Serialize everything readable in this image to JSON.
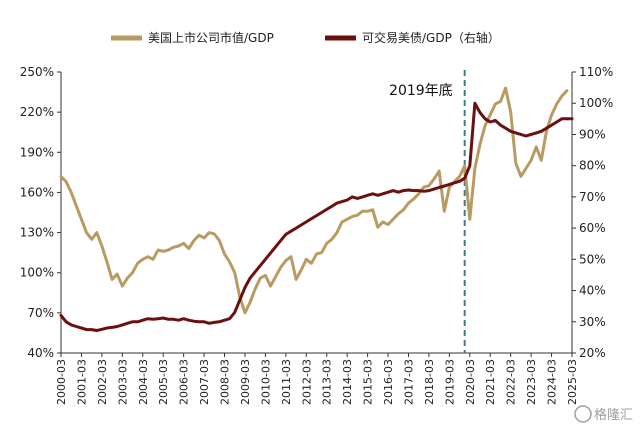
{
  "chart_data": {
    "type": "line",
    "legend_position": "top",
    "grid": false,
    "annotation": "2019年底",
    "annotation_x": "2019-12",
    "watermark": "格隆汇",
    "colors": {
      "series1": "#B89B62",
      "series2": "#6B0F0F",
      "annotation_line": "#3E7B8C"
    },
    "left_axis": {
      "ticks": [
        40,
        70,
        100,
        130,
        160,
        190,
        220,
        250
      ],
      "labels": [
        "40%",
        "70%",
        "100%",
        "130%",
        "160%",
        "190%",
        "220%",
        "250%"
      ],
      "ylim": [
        40,
        250
      ]
    },
    "right_axis": {
      "ticks": [
        20,
        30,
        40,
        50,
        60,
        70,
        80,
        90,
        100,
        110
      ],
      "labels": [
        "20%",
        "30%",
        "40%",
        "50%",
        "60%",
        "70%",
        "80%",
        "90%",
        "100%",
        "110%"
      ],
      "ylim": [
        20,
        110
      ]
    },
    "x_range": [
      "2000-03",
      "2025-03"
    ],
    "x_ticks": [
      "2000-03",
      "2001-03",
      "2002-03",
      "2003-03",
      "2004-03",
      "2005-03",
      "2006-03",
      "2007-03",
      "2008-03",
      "2009-03",
      "2010-03",
      "2011-03",
      "2012-03",
      "2013-03",
      "2014-03",
      "2015-03",
      "2016-03",
      "2017-03",
      "2018-03",
      "2019-03",
      "2020-03",
      "2021-03",
      "2022-03",
      "2023-03",
      "2024-03",
      "2025-03"
    ],
    "series": [
      {
        "name": "美国上市公司市值/GDP",
        "axis": "left",
        "points": [
          [
            "2000-03",
            172
          ],
          [
            "2000-06",
            168
          ],
          [
            "2000-09",
            160
          ],
          [
            "2000-12",
            150
          ],
          [
            "2001-03",
            140
          ],
          [
            "2001-06",
            130
          ],
          [
            "2001-09",
            125
          ],
          [
            "2001-12",
            130
          ],
          [
            "2002-03",
            120
          ],
          [
            "2002-06",
            108
          ],
          [
            "2002-09",
            95
          ],
          [
            "2002-12",
            99
          ],
          [
            "2003-03",
            90
          ],
          [
            "2003-06",
            96
          ],
          [
            "2003-09",
            100
          ],
          [
            "2003-12",
            107
          ],
          [
            "2004-03",
            110
          ],
          [
            "2004-06",
            112
          ],
          [
            "2004-09",
            110
          ],
          [
            "2004-12",
            117
          ],
          [
            "2005-03",
            116
          ],
          [
            "2005-06",
            117
          ],
          [
            "2005-09",
            119
          ],
          [
            "2005-12",
            120
          ],
          [
            "2006-03",
            122
          ],
          [
            "2006-06",
            118
          ],
          [
            "2006-09",
            124
          ],
          [
            "2006-12",
            128
          ],
          [
            "2007-03",
            126
          ],
          [
            "2007-06",
            130
          ],
          [
            "2007-09",
            129
          ],
          [
            "2007-12",
            124
          ],
          [
            "2008-03",
            114
          ],
          [
            "2008-06",
            108
          ],
          [
            "2008-09",
            100
          ],
          [
            "2008-12",
            82
          ],
          [
            "2009-03",
            70
          ],
          [
            "2009-06",
            78
          ],
          [
            "2009-09",
            88
          ],
          [
            "2009-12",
            96
          ],
          [
            "2010-03",
            98
          ],
          [
            "2010-06",
            90
          ],
          [
            "2010-09",
            97
          ],
          [
            "2010-12",
            104
          ],
          [
            "2011-03",
            109
          ],
          [
            "2011-06",
            112
          ],
          [
            "2011-09",
            95
          ],
          [
            "2011-12",
            102
          ],
          [
            "2012-03",
            110
          ],
          [
            "2012-06",
            107
          ],
          [
            "2012-09",
            114
          ],
          [
            "2012-12",
            115
          ],
          [
            "2013-03",
            122
          ],
          [
            "2013-06",
            125
          ],
          [
            "2013-09",
            130
          ],
          [
            "2013-12",
            138
          ],
          [
            "2014-03",
            140
          ],
          [
            "2014-06",
            142
          ],
          [
            "2014-09",
            143
          ],
          [
            "2014-12",
            146
          ],
          [
            "2015-03",
            146
          ],
          [
            "2015-06",
            147
          ],
          [
            "2015-09",
            134
          ],
          [
            "2015-12",
            138
          ],
          [
            "2016-03",
            136
          ],
          [
            "2016-06",
            140
          ],
          [
            "2016-09",
            144
          ],
          [
            "2016-12",
            147
          ],
          [
            "2017-03",
            152
          ],
          [
            "2017-06",
            155
          ],
          [
            "2017-09",
            159
          ],
          [
            "2017-12",
            164
          ],
          [
            "2018-03",
            165
          ],
          [
            "2018-06",
            170
          ],
          [
            "2018-09",
            176
          ],
          [
            "2018-12",
            146
          ],
          [
            "2019-03",
            164
          ],
          [
            "2019-06",
            168
          ],
          [
            "2019-09",
            172
          ],
          [
            "2019-12",
            180
          ],
          [
            "2020-03",
            140
          ],
          [
            "2020-06",
            178
          ],
          [
            "2020-09",
            196
          ],
          [
            "2020-12",
            210
          ],
          [
            "2021-03",
            218
          ],
          [
            "2021-06",
            226
          ],
          [
            "2021-09",
            228
          ],
          [
            "2021-12",
            238
          ],
          [
            "2022-03",
            220
          ],
          [
            "2022-06",
            182
          ],
          [
            "2022-09",
            172
          ],
          [
            "2022-12",
            178
          ],
          [
            "2023-03",
            184
          ],
          [
            "2023-06",
            194
          ],
          [
            "2023-09",
            184
          ],
          [
            "2023-12",
            206
          ],
          [
            "2024-03",
            218
          ],
          [
            "2024-06",
            226
          ],
          [
            "2024-09",
            232
          ],
          [
            "2024-12",
            236
          ]
        ]
      },
      {
        "name": "可交易美债/GDP（右轴）",
        "axis": "right",
        "points": [
          [
            "2000-03",
            32
          ],
          [
            "2000-06",
            30
          ],
          [
            "2000-09",
            29
          ],
          [
            "2000-12",
            28.5
          ],
          [
            "2001-03",
            28
          ],
          [
            "2001-06",
            27.5
          ],
          [
            "2001-09",
            27.5
          ],
          [
            "2001-12",
            27.2
          ],
          [
            "2002-03",
            27.6
          ],
          [
            "2002-06",
            28
          ],
          [
            "2002-09",
            28.2
          ],
          [
            "2002-12",
            28.5
          ],
          [
            "2003-03",
            29
          ],
          [
            "2003-06",
            29.5
          ],
          [
            "2003-09",
            30
          ],
          [
            "2003-12",
            30
          ],
          [
            "2004-03",
            30.5
          ],
          [
            "2004-06",
            31
          ],
          [
            "2004-09",
            30.8
          ],
          [
            "2004-12",
            31
          ],
          [
            "2005-03",
            31.2
          ],
          [
            "2005-06",
            30.8
          ],
          [
            "2005-09",
            30.8
          ],
          [
            "2005-12",
            30.5
          ],
          [
            "2006-03",
            31
          ],
          [
            "2006-06",
            30.5
          ],
          [
            "2006-09",
            30.2
          ],
          [
            "2006-12",
            30
          ],
          [
            "2007-03",
            30
          ],
          [
            "2007-06",
            29.5
          ],
          [
            "2007-09",
            29.8
          ],
          [
            "2007-12",
            30
          ],
          [
            "2008-03",
            30.5
          ],
          [
            "2008-06",
            31
          ],
          [
            "2008-09",
            33
          ],
          [
            "2008-12",
            37
          ],
          [
            "2009-03",
            41
          ],
          [
            "2009-06",
            44
          ],
          [
            "2009-09",
            46
          ],
          [
            "2009-12",
            48
          ],
          [
            "2010-03",
            50
          ],
          [
            "2010-06",
            52
          ],
          [
            "2010-09",
            54
          ],
          [
            "2010-12",
            56
          ],
          [
            "2011-03",
            58
          ],
          [
            "2011-06",
            59
          ],
          [
            "2011-09",
            60
          ],
          [
            "2011-12",
            61
          ],
          [
            "2012-03",
            62
          ],
          [
            "2012-06",
            63
          ],
          [
            "2012-09",
            64
          ],
          [
            "2012-12",
            65
          ],
          [
            "2013-03",
            66
          ],
          [
            "2013-06",
            67
          ],
          [
            "2013-09",
            68
          ],
          [
            "2013-12",
            68.5
          ],
          [
            "2014-03",
            69
          ],
          [
            "2014-06",
            70
          ],
          [
            "2014-09",
            69.5
          ],
          [
            "2014-12",
            70
          ],
          [
            "2015-03",
            70.5
          ],
          [
            "2015-06",
            71
          ],
          [
            "2015-09",
            70.5
          ],
          [
            "2015-12",
            71
          ],
          [
            "2016-03",
            71.5
          ],
          [
            "2016-06",
            72
          ],
          [
            "2016-09",
            71.5
          ],
          [
            "2016-12",
            72
          ],
          [
            "2017-03",
            72.2
          ],
          [
            "2017-06",
            72
          ],
          [
            "2017-09",
            72
          ],
          [
            "2017-12",
            71.8
          ],
          [
            "2018-03",
            72
          ],
          [
            "2018-06",
            72.5
          ],
          [
            "2018-09",
            73
          ],
          [
            "2018-12",
            73.5
          ],
          [
            "2019-03",
            74
          ],
          [
            "2019-06",
            74.5
          ],
          [
            "2019-09",
            75
          ],
          [
            "2019-12",
            76
          ],
          [
            "2020-03",
            80
          ],
          [
            "2020-06",
            100
          ],
          [
            "2020-09",
            97
          ],
          [
            "2020-12",
            95
          ],
          [
            "2021-03",
            94
          ],
          [
            "2021-06",
            94.5
          ],
          [
            "2021-09",
            93
          ],
          [
            "2021-12",
            92
          ],
          [
            "2022-03",
            91
          ],
          [
            "2022-06",
            90.5
          ],
          [
            "2022-09",
            90
          ],
          [
            "2022-12",
            89.5
          ],
          [
            "2023-03",
            90
          ],
          [
            "2023-06",
            90.5
          ],
          [
            "2023-09",
            91
          ],
          [
            "2023-12",
            92
          ],
          [
            "2024-03",
            93
          ],
          [
            "2024-06",
            94
          ],
          [
            "2024-09",
            95
          ],
          [
            "2024-12",
            95
          ],
          [
            "2025-03",
            95
          ]
        ]
      }
    ]
  }
}
